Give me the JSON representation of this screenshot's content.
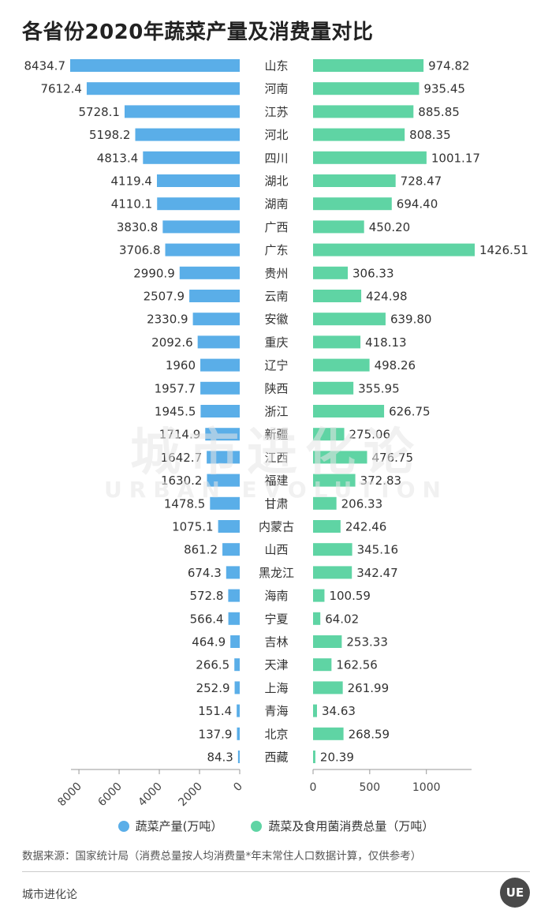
{
  "title": "各省份2020年蔬菜产量及消费量对比",
  "chart_data": {
    "type": "bar",
    "orientation": "horizontal-butterfly",
    "categories": [
      "山东",
      "河南",
      "江苏",
      "河北",
      "四川",
      "湖北",
      "湖南",
      "广西",
      "广东",
      "贵州",
      "云南",
      "安徽",
      "重庆",
      "辽宁",
      "陕西",
      "浙江",
      "新疆",
      "江西",
      "福建",
      "甘肃",
      "内蒙古",
      "山西",
      "黑龙江",
      "海南",
      "宁夏",
      "吉林",
      "天津",
      "上海",
      "青海",
      "北京",
      "西藏"
    ],
    "series": [
      {
        "name": "蔬菜产量(万吨）",
        "side": "left",
        "color": "#5aaee8",
        "values": [
          8434.7,
          7612.4,
          5728.1,
          5198.2,
          4813.4,
          4119.4,
          4110.1,
          3830.8,
          3706.8,
          2990.9,
          2507.9,
          2330.9,
          2092.6,
          1960,
          1957.7,
          1945.5,
          1714.9,
          1642.7,
          1630.2,
          1478.5,
          1075.1,
          861.2,
          674.3,
          572.8,
          566.4,
          464.9,
          266.5,
          252.9,
          151.4,
          137.9,
          84.3
        ],
        "labels": [
          "8434.7",
          "7612.4",
          "5728.1",
          "5198.2",
          "4813.4",
          "4119.4",
          "4110.1",
          "3830.8",
          "3706.8",
          "2990.9",
          "2507.9",
          "2330.9",
          "2092.6",
          "1960",
          "1957.7",
          "1945.5",
          "1714.9",
          "1642.7",
          "1630.2",
          "1478.5",
          "1075.1",
          "861.2",
          "674.3",
          "572.8",
          "566.4",
          "464.9",
          "266.5",
          "252.9",
          "151.4",
          "137.9",
          "84.3"
        ],
        "xlim": [
          0,
          9000
        ],
        "ticks": [
          0,
          2000,
          4000,
          6000,
          8000
        ]
      },
      {
        "name": "蔬菜及食用菌消费总量（万吨）",
        "side": "right",
        "color": "#5fd4a4",
        "values": [
          974.82,
          935.45,
          885.85,
          808.35,
          1001.17,
          728.47,
          694.4,
          450.2,
          1426.51,
          306.33,
          424.98,
          639.8,
          418.13,
          498.26,
          355.95,
          626.75,
          275.06,
          476.75,
          372.83,
          206.33,
          242.46,
          345.16,
          342.47,
          100.59,
          64.02,
          253.33,
          162.56,
          261.99,
          34.63,
          268.59,
          20.39
        ],
        "labels": [
          "974.82",
          "935.45",
          "885.85",
          "808.35",
          "1001.17",
          "728.47",
          "694.40",
          "450.20",
          "1426.51",
          "306.33",
          "424.98",
          "639.80",
          "418.13",
          "498.26",
          "355.95",
          "626.75",
          "275.06",
          "476.75",
          "372.83",
          "206.33",
          "242.46",
          "345.16",
          "342.47",
          "100.59",
          "64.02",
          "253.33",
          "162.56",
          "261.99",
          "34.63",
          "268.59",
          "20.39"
        ],
        "xlim": [
          0,
          1400
        ],
        "ticks": [
          0,
          500,
          1000
        ]
      }
    ]
  },
  "source": "数据来源：国家统计局（消费总量按人均消费量*年末常住人口数据计算，仅供参考）",
  "footer": {
    "brand": "城市进化论",
    "logo": "UE"
  },
  "watermark": {
    "cn": "城市进化论",
    "en": "URBAN EVOLUTION"
  },
  "colors": {
    "left": "#5aaee8",
    "right": "#5fd4a4",
    "axis": "#999999"
  }
}
